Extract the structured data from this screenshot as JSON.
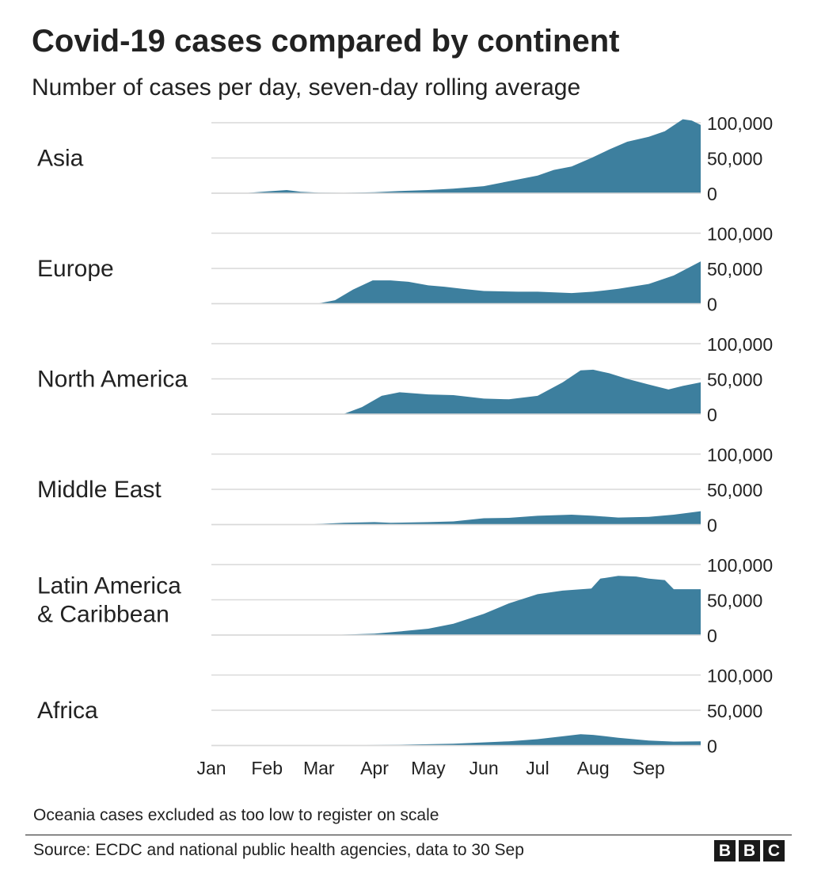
{
  "title": "Covid-19 cases compared by continent",
  "subtitle": "Number of cases per day, seven-day rolling average",
  "footnote": "Oceania cases excluded as too low to register on scale",
  "source": "Source: ECDC and national public health agencies, data to 30 Sep",
  "logo": [
    "B",
    "B",
    "C"
  ],
  "colors": {
    "area": "#3d7f9e",
    "grid": "#d9d9d9",
    "text": "#222222"
  },
  "chart_data": {
    "type": "area",
    "y_ticks": [
      "100,000",
      "50,000",
      "0"
    ],
    "y_tick_values": [
      100000,
      50000,
      0
    ],
    "ylim": [
      0,
      100000
    ],
    "x_ticks": [
      "Jan",
      "Feb",
      "Mar",
      "Apr",
      "May",
      "Jun",
      "Jul",
      "Aug",
      "Sep"
    ],
    "xlim": [
      "2020-01-01",
      "2020-09-30"
    ],
    "grid": true,
    "series": [
      {
        "name": "Asia",
        "lines": [
          "Asia"
        ],
        "points": [
          [
            "2020-01-01",
            0
          ],
          [
            "2020-01-20",
            300
          ],
          [
            "2020-02-01",
            2500
          ],
          [
            "2020-02-12",
            4500
          ],
          [
            "2020-02-20",
            2000
          ],
          [
            "2020-03-01",
            800
          ],
          [
            "2020-03-15",
            600
          ],
          [
            "2020-04-01",
            1500
          ],
          [
            "2020-04-15",
            3000
          ],
          [
            "2020-05-01",
            4500
          ],
          [
            "2020-05-15",
            6500
          ],
          [
            "2020-06-01",
            10000
          ],
          [
            "2020-06-15",
            17000
          ],
          [
            "2020-07-01",
            25000
          ],
          [
            "2020-07-10",
            33000
          ],
          [
            "2020-07-20",
            38000
          ],
          [
            "2020-07-31",
            50000
          ],
          [
            "2020-08-10",
            62000
          ],
          [
            "2020-08-20",
            73000
          ],
          [
            "2020-09-01",
            80000
          ],
          [
            "2020-09-10",
            88000
          ],
          [
            "2020-09-20",
            105000
          ],
          [
            "2020-09-25",
            103000
          ],
          [
            "2020-09-30",
            97000
          ]
        ]
      },
      {
        "name": "Europe",
        "lines": [
          "Europe"
        ],
        "points": [
          [
            "2020-01-01",
            0
          ],
          [
            "2020-03-01",
            500
          ],
          [
            "2020-03-10",
            5000
          ],
          [
            "2020-03-20",
            20000
          ],
          [
            "2020-03-31",
            33000
          ],
          [
            "2020-04-10",
            33000
          ],
          [
            "2020-04-20",
            31000
          ],
          [
            "2020-05-01",
            26000
          ],
          [
            "2020-05-10",
            24000
          ],
          [
            "2020-05-20",
            21000
          ],
          [
            "2020-06-01",
            18000
          ],
          [
            "2020-06-20",
            17000
          ],
          [
            "2020-07-01",
            17000
          ],
          [
            "2020-07-20",
            15000
          ],
          [
            "2020-08-01",
            17000
          ],
          [
            "2020-08-15",
            21000
          ],
          [
            "2020-09-01",
            28000
          ],
          [
            "2020-09-15",
            40000
          ],
          [
            "2020-09-30",
            60000
          ]
        ]
      },
      {
        "name": "North America",
        "lines": [
          "North America"
        ],
        "points": [
          [
            "2020-01-01",
            0
          ],
          [
            "2020-03-15",
            500
          ],
          [
            "2020-03-25",
            10000
          ],
          [
            "2020-04-05",
            26000
          ],
          [
            "2020-04-15",
            31000
          ],
          [
            "2020-05-01",
            28000
          ],
          [
            "2020-05-15",
            27000
          ],
          [
            "2020-06-01",
            22000
          ],
          [
            "2020-06-15",
            21000
          ],
          [
            "2020-07-01",
            26000
          ],
          [
            "2020-07-15",
            45000
          ],
          [
            "2020-07-25",
            62000
          ],
          [
            "2020-08-01",
            63000
          ],
          [
            "2020-08-10",
            58000
          ],
          [
            "2020-08-20",
            50000
          ],
          [
            "2020-09-01",
            42000
          ],
          [
            "2020-09-12",
            35000
          ],
          [
            "2020-09-20",
            40000
          ],
          [
            "2020-09-30",
            45000
          ]
        ]
      },
      {
        "name": "Middle East",
        "lines": [
          "Middle East"
        ],
        "points": [
          [
            "2020-01-01",
            0
          ],
          [
            "2020-02-25",
            300
          ],
          [
            "2020-03-15",
            2500
          ],
          [
            "2020-04-01",
            3500
          ],
          [
            "2020-04-10",
            2500
          ],
          [
            "2020-05-01",
            3500
          ],
          [
            "2020-05-15",
            4500
          ],
          [
            "2020-06-01",
            9000
          ],
          [
            "2020-06-15",
            9500
          ],
          [
            "2020-07-01",
            12500
          ],
          [
            "2020-07-20",
            14000
          ],
          [
            "2020-08-01",
            12500
          ],
          [
            "2020-08-15",
            10000
          ],
          [
            "2020-09-01",
            11000
          ],
          [
            "2020-09-15",
            14000
          ],
          [
            "2020-09-30",
            19000
          ]
        ]
      },
      {
        "name": "Latin America & Caribbean",
        "lines": [
          "Latin America",
          "& Caribbean"
        ],
        "points": [
          [
            "2020-01-01",
            0
          ],
          [
            "2020-03-10",
            300
          ],
          [
            "2020-04-01",
            2000
          ],
          [
            "2020-04-15",
            5000
          ],
          [
            "2020-05-01",
            9000
          ],
          [
            "2020-05-15",
            16000
          ],
          [
            "2020-06-01",
            30000
          ],
          [
            "2020-06-15",
            45000
          ],
          [
            "2020-07-01",
            58000
          ],
          [
            "2020-07-15",
            63000
          ],
          [
            "2020-07-31",
            66000
          ],
          [
            "2020-08-05",
            80000
          ],
          [
            "2020-08-15",
            84000
          ],
          [
            "2020-08-25",
            83000
          ],
          [
            "2020-09-01",
            80000
          ],
          [
            "2020-09-10",
            78000
          ],
          [
            "2020-09-15",
            65000
          ],
          [
            "2020-09-30",
            65000
          ]
        ]
      },
      {
        "name": "Africa",
        "lines": [
          "Africa"
        ],
        "points": [
          [
            "2020-01-01",
            0
          ],
          [
            "2020-03-15",
            200
          ],
          [
            "2020-04-15",
            1000
          ],
          [
            "2020-05-15",
            2500
          ],
          [
            "2020-06-15",
            6000
          ],
          [
            "2020-07-01",
            9000
          ],
          [
            "2020-07-15",
            13000
          ],
          [
            "2020-07-25",
            16000
          ],
          [
            "2020-08-01",
            15000
          ],
          [
            "2020-08-15",
            11000
          ],
          [
            "2020-09-01",
            7000
          ],
          [
            "2020-09-15",
            5500
          ],
          [
            "2020-09-30",
            6000
          ]
        ]
      }
    ]
  }
}
